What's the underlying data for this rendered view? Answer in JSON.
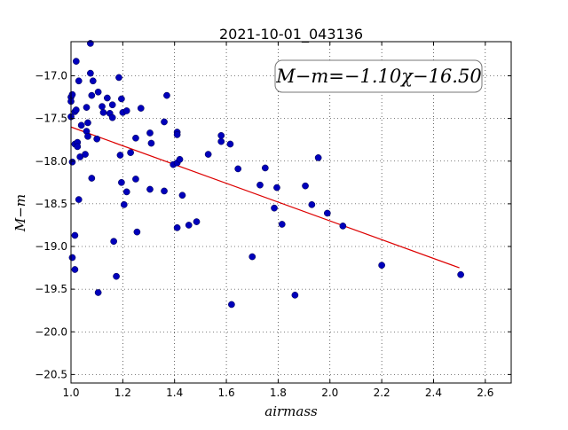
{
  "chart_data": {
    "type": "scatter",
    "title": "2021-10-01_043136",
    "xlabel": "airmass",
    "ylabel": "M−m",
    "xlim": [
      1.0,
      2.7
    ],
    "ylim": [
      -20.6,
      -16.6
    ],
    "y_inverted": true,
    "grid": true,
    "x_ticks": [
      1.0,
      1.2,
      1.4,
      1.6,
      1.8,
      2.0,
      2.2,
      2.4,
      2.6
    ],
    "x_tick_labels": [
      "1.0",
      "1.2",
      "1.4",
      "1.6",
      "1.8",
      "2.0",
      "2.2",
      "2.4",
      "2.6"
    ],
    "y_ticks": [
      -17.0,
      -17.5,
      -18.0,
      -18.5,
      -19.0,
      -19.5,
      -20.0,
      -20.5
    ],
    "y_tick_labels": [
      "−17.0",
      "−17.5",
      "−18.0",
      "−18.5",
      "−19.0",
      "−19.5",
      "−20.0",
      "−20.5"
    ],
    "annotation": "M−m=−1.10χ−16.50",
    "fit": {
      "slope": -1.1,
      "intercept": -16.5,
      "x_range": [
        1.0,
        2.5
      ],
      "color": "#dd0000"
    },
    "marker_color": "#0000bb",
    "points": [
      {
        "x": 1.0,
        "y": -17.25
      },
      {
        "x": 1.0,
        "y": -17.3
      },
      {
        "x": 1.0,
        "y": -17.48
      },
      {
        "x": 1.005,
        "y": -17.22
      },
      {
        "x": 1.005,
        "y": -18.01
      },
      {
        "x": 1.005,
        "y": -19.13
      },
      {
        "x": 1.015,
        "y": -17.42
      },
      {
        "x": 1.015,
        "y": -17.8
      },
      {
        "x": 1.015,
        "y": -18.87
      },
      {
        "x": 1.015,
        "y": -19.27
      },
      {
        "x": 1.02,
        "y": -16.83
      },
      {
        "x": 1.02,
        "y": -17.4
      },
      {
        "x": 1.025,
        "y": -17.78
      },
      {
        "x": 1.025,
        "y": -17.83
      },
      {
        "x": 1.03,
        "y": -17.06
      },
      {
        "x": 1.03,
        "y": -18.45
      },
      {
        "x": 1.035,
        "y": -17.95
      },
      {
        "x": 1.04,
        "y": -17.58
      },
      {
        "x": 1.055,
        "y": -17.92
      },
      {
        "x": 1.06,
        "y": -17.37
      },
      {
        "x": 1.06,
        "y": -17.65
      },
      {
        "x": 1.065,
        "y": -17.55
      },
      {
        "x": 1.065,
        "y": -17.71
      },
      {
        "x": 1.075,
        "y": -16.62
      },
      {
        "x": 1.075,
        "y": -16.97
      },
      {
        "x": 1.08,
        "y": -17.23
      },
      {
        "x": 1.08,
        "y": -18.2
      },
      {
        "x": 1.085,
        "y": -17.06
      },
      {
        "x": 1.1,
        "y": -17.74
      },
      {
        "x": 1.105,
        "y": -17.19
      },
      {
        "x": 1.105,
        "y": -19.54
      },
      {
        "x": 1.12,
        "y": -17.36
      },
      {
        "x": 1.125,
        "y": -17.43
      },
      {
        "x": 1.14,
        "y": -17.26
      },
      {
        "x": 1.15,
        "y": -17.44
      },
      {
        "x": 1.16,
        "y": -17.34
      },
      {
        "x": 1.16,
        "y": -17.49
      },
      {
        "x": 1.165,
        "y": -18.94
      },
      {
        "x": 1.175,
        "y": -19.35
      },
      {
        "x": 1.185,
        "y": -17.02
      },
      {
        "x": 1.19,
        "y": -17.93
      },
      {
        "x": 1.195,
        "y": -17.27
      },
      {
        "x": 1.195,
        "y": -18.25
      },
      {
        "x": 1.2,
        "y": -17.43
      },
      {
        "x": 1.205,
        "y": -18.51
      },
      {
        "x": 1.215,
        "y": -17.41
      },
      {
        "x": 1.215,
        "y": -18.36
      },
      {
        "x": 1.23,
        "y": -17.9
      },
      {
        "x": 1.25,
        "y": -17.73
      },
      {
        "x": 1.25,
        "y": -18.21
      },
      {
        "x": 1.255,
        "y": -18.83
      },
      {
        "x": 1.27,
        "y": -17.38
      },
      {
        "x": 1.305,
        "y": -17.67
      },
      {
        "x": 1.305,
        "y": -18.33
      },
      {
        "x": 1.31,
        "y": -17.79
      },
      {
        "x": 1.36,
        "y": -17.54
      },
      {
        "x": 1.36,
        "y": -18.35
      },
      {
        "x": 1.37,
        "y": -17.23
      },
      {
        "x": 1.395,
        "y": -18.04
      },
      {
        "x": 1.41,
        "y": -17.66
      },
      {
        "x": 1.41,
        "y": -17.69
      },
      {
        "x": 1.41,
        "y": -18.02
      },
      {
        "x": 1.41,
        "y": -18.78
      },
      {
        "x": 1.42,
        "y": -17.98
      },
      {
        "x": 1.43,
        "y": -18.4
      },
      {
        "x": 1.455,
        "y": -18.75
      },
      {
        "x": 1.485,
        "y": -18.71
      },
      {
        "x": 1.53,
        "y": -17.92
      },
      {
        "x": 1.58,
        "y": -17.7
      },
      {
        "x": 1.58,
        "y": -17.77
      },
      {
        "x": 1.615,
        "y": -17.8
      },
      {
        "x": 1.62,
        "y": -19.68
      },
      {
        "x": 1.645,
        "y": -18.09
      },
      {
        "x": 1.7,
        "y": -19.12
      },
      {
        "x": 1.73,
        "y": -18.28
      },
      {
        "x": 1.75,
        "y": -18.08
      },
      {
        "x": 1.785,
        "y": -18.55
      },
      {
        "x": 1.795,
        "y": -18.31
      },
      {
        "x": 1.815,
        "y": -18.74
      },
      {
        "x": 1.865,
        "y": -19.57
      },
      {
        "x": 1.905,
        "y": -18.29
      },
      {
        "x": 1.93,
        "y": -18.51
      },
      {
        "x": 1.955,
        "y": -17.96
      },
      {
        "x": 1.99,
        "y": -18.61
      },
      {
        "x": 2.05,
        "y": -18.76
      },
      {
        "x": 2.2,
        "y": -19.22
      },
      {
        "x": 2.505,
        "y": -19.33
      }
    ]
  }
}
